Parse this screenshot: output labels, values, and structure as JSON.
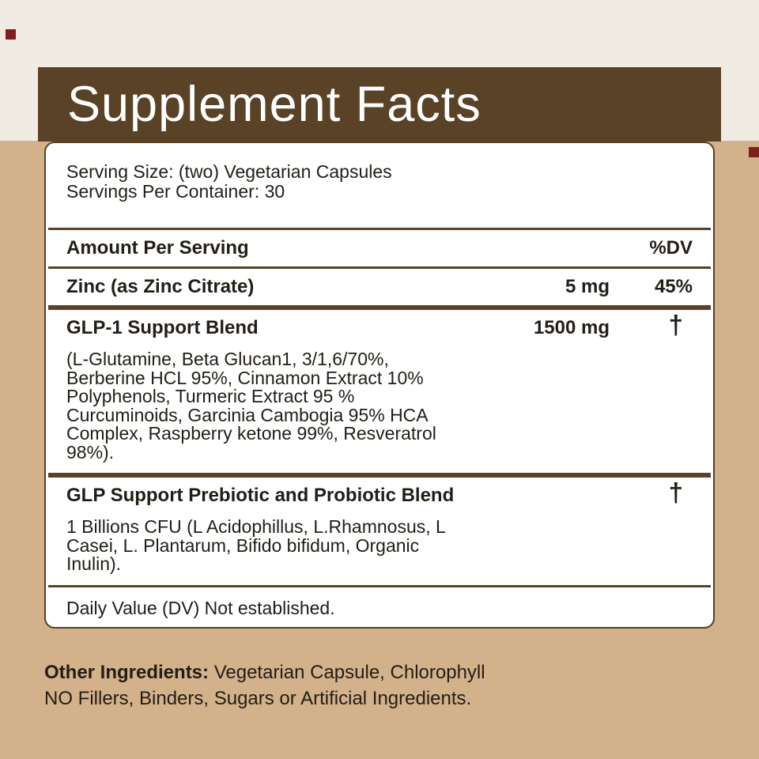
{
  "colors": {
    "bg-top": "#f0ebe3",
    "bg-main": "#d3b18a",
    "brown": "#5a4227",
    "panel-bg": "#ffffff",
    "text": "#221d16",
    "title": "#ffffff",
    "mark": "#7d201c"
  },
  "header": {
    "title": "Supplement Facts"
  },
  "facts": {
    "serving_size": "Serving Size: (two) Vegetarian Capsules",
    "servings_per_container": "Servings Per Container: 30",
    "columns": {
      "amount": "Amount Per Serving",
      "dv": "%DV"
    },
    "zinc": {
      "name": "Zinc (as Zinc Citrate)",
      "amount": "5 mg",
      "dv": "45%"
    },
    "blend1": {
      "name": "GLP-1 Support Blend",
      "amount": "1500 mg",
      "dv": "†",
      "description": "(L-Glutamine, Beta Glucan1, 3/1,6/70%, Berberine HCL 95%, Cinnamon Extract 10% Polyphenols, Turmeric Extract 95 % Curcuminoids, Garcinia Cambogia  95% HCA Complex, Raspberry ketone 99%, Resveratrol 98%)."
    },
    "blend2": {
      "name": "GLP Support Prebiotic and Probiotic Blend",
      "dv": "†",
      "description": "1 Billions CFU (L Acidophillus, L.Rhamnosus, L Casei, L. Plantarum, Bifido bifidum, Organic Inulin)."
    },
    "footnote": "Daily Value (DV) Not established."
  },
  "other": {
    "label": "Other Ingredients:",
    "text": " Vegetarian Capsule, Chlorophyll",
    "line2": "NO Fillers, Binders, Sugars or Artificial Ingredients."
  }
}
